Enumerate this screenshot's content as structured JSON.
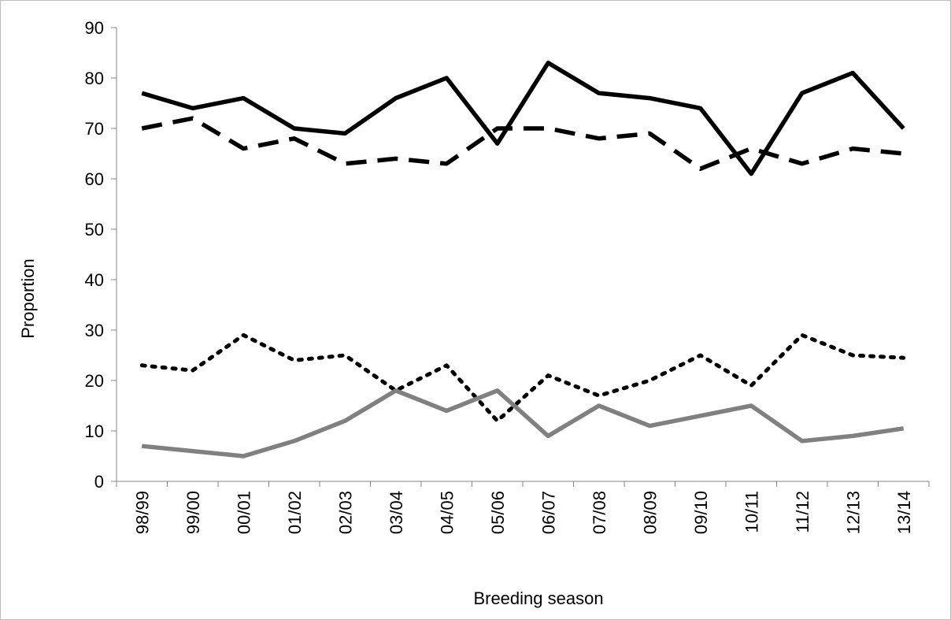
{
  "chart_data": {
    "type": "line",
    "x_label": "Breeding season",
    "y_label": "Proportion",
    "categories": [
      "98/99",
      "99/00",
      "00/01",
      "01/02",
      "02/03",
      "03/04",
      "04/05",
      "05/06",
      "06/07",
      "07/08",
      "08/09",
      "09/10",
      "10/11",
      "11/12",
      "12/13",
      "13/14"
    ],
    "series": [
      {
        "color": "#000000",
        "line_style": "solid",
        "values": [
          77,
          74,
          76,
          70,
          69,
          76,
          80,
          67,
          83,
          77,
          76,
          74,
          61,
          77,
          81,
          70
        ]
      },
      {
        "color": "#000000",
        "line_style": "dashed",
        "values": [
          70,
          72,
          66,
          68,
          63,
          64,
          63,
          70,
          70,
          68,
          69,
          62,
          66,
          63,
          66,
          65
        ]
      },
      {
        "color": "#000000",
        "line_style": "dotted",
        "values": [
          23,
          22,
          29,
          24,
          25,
          18,
          23,
          12,
          21,
          17,
          20,
          25,
          19,
          29,
          25,
          24.5
        ]
      },
      {
        "color": "#808080",
        "line_style": "solid",
        "values": [
          7,
          6,
          5,
          8,
          12,
          18,
          14,
          18,
          9,
          15,
          11,
          13,
          15,
          8,
          9,
          10.5
        ]
      }
    ],
    "ylim": [
      0,
      90
    ],
    "yticks": [
      0,
      10,
      20,
      30,
      40,
      50,
      60,
      70,
      80,
      90
    ],
    "grid": false
  }
}
